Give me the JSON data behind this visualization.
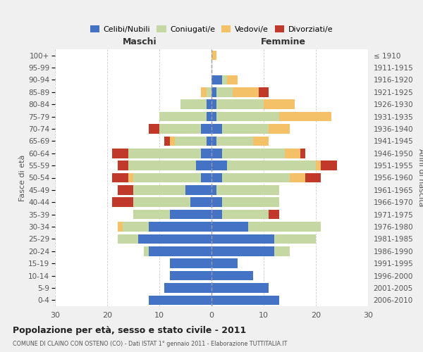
{
  "age_groups": [
    "0-4",
    "5-9",
    "10-14",
    "15-19",
    "20-24",
    "25-29",
    "30-34",
    "35-39",
    "40-44",
    "45-49",
    "50-54",
    "55-59",
    "60-64",
    "65-69",
    "70-74",
    "75-79",
    "80-84",
    "85-89",
    "90-94",
    "95-99",
    "100+"
  ],
  "birth_years": [
    "2006-2010",
    "2001-2005",
    "1996-2000",
    "1991-1995",
    "1986-1990",
    "1981-1985",
    "1976-1980",
    "1971-1975",
    "1966-1970",
    "1961-1965",
    "1956-1960",
    "1951-1955",
    "1946-1950",
    "1941-1945",
    "1936-1940",
    "1931-1935",
    "1926-1930",
    "1921-1925",
    "1916-1920",
    "1911-1915",
    "≤ 1910"
  ],
  "male_celibi": [
    12,
    9,
    8,
    8,
    12,
    14,
    12,
    8,
    4,
    5,
    2,
    3,
    2,
    1,
    2,
    1,
    1,
    0,
    0,
    0,
    0
  ],
  "male_coniugati": [
    0,
    0,
    0,
    0,
    1,
    4,
    5,
    7,
    11,
    10,
    13,
    13,
    14,
    6,
    8,
    9,
    5,
    1,
    0,
    0,
    0
  ],
  "male_vedovi": [
    0,
    0,
    0,
    0,
    0,
    0,
    1,
    0,
    0,
    0,
    1,
    0,
    0,
    1,
    0,
    0,
    0,
    1,
    0,
    0,
    0
  ],
  "male_divorziati": [
    0,
    0,
    0,
    0,
    0,
    0,
    0,
    0,
    4,
    3,
    3,
    2,
    3,
    1,
    2,
    0,
    0,
    0,
    0,
    0,
    0
  ],
  "female_celibi": [
    13,
    11,
    8,
    5,
    12,
    12,
    7,
    2,
    2,
    1,
    2,
    3,
    2,
    1,
    2,
    1,
    1,
    1,
    2,
    0,
    0
  ],
  "female_coniugati": [
    0,
    0,
    0,
    0,
    3,
    8,
    14,
    9,
    11,
    12,
    13,
    17,
    12,
    7,
    9,
    12,
    9,
    3,
    1,
    0,
    0
  ],
  "female_vedovi": [
    0,
    0,
    0,
    0,
    0,
    0,
    0,
    0,
    0,
    0,
    3,
    1,
    3,
    3,
    4,
    10,
    6,
    5,
    2,
    0,
    1
  ],
  "female_divorziati": [
    0,
    0,
    0,
    0,
    0,
    0,
    0,
    2,
    0,
    0,
    3,
    3,
    1,
    0,
    0,
    0,
    0,
    2,
    0,
    0,
    0
  ],
  "color_celibi": "#4472c4",
  "color_coniugati": "#c5d8a3",
  "color_vedovi": "#f5c168",
  "color_divorziati": "#c0392b",
  "title": "Popolazione per età, sesso e stato civile - 2011",
  "subtitle": "COMUNE DI CLAINO CON OSTENO (CO) - Dati ISTAT 1° gennaio 2011 - Elaborazione TUTTITALIA.IT",
  "xlabel_left": "Maschi",
  "xlabel_right": "Femmine",
  "ylabel_left": "Fasce di età",
  "ylabel_right": "Anni di nascita",
  "xlim": 30,
  "bg_color": "#f0f0f0",
  "plot_bg": "#ffffff",
  "legend_labels": [
    "Celibi/Nubili",
    "Coniugati/e",
    "Vedovi/e",
    "Divorziati/e"
  ]
}
